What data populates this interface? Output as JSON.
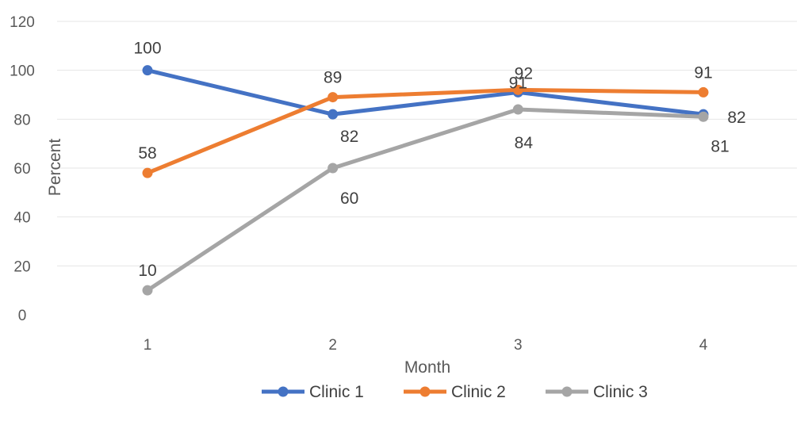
{
  "chart_data": {
    "type": "line",
    "categories": [
      "1",
      "2",
      "3",
      "4"
    ],
    "xlabel": "Month",
    "ylabel": "Percent",
    "ylim": [
      0,
      120
    ],
    "yticks": [
      "0",
      "20",
      "40",
      "60",
      "80",
      "100",
      "120"
    ],
    "grid": true,
    "legend_position": "bottom",
    "series": [
      {
        "name": "Clinic 1",
        "color": "#4472C4",
        "values": [
          100,
          82,
          91,
          82
        ],
        "labels": [
          "100",
          "82",
          "91",
          "82"
        ]
      },
      {
        "name": "Clinic 2",
        "color": "#ED7D31",
        "values": [
          58,
          89,
          92,
          91
        ],
        "labels": [
          "58",
          "89",
          "92",
          "91"
        ]
      },
      {
        "name": "Clinic 3",
        "color": "#A5A5A5",
        "values": [
          10,
          60,
          84,
          81
        ],
        "labels": [
          "10",
          "60",
          "84",
          "81"
        ]
      }
    ]
  }
}
